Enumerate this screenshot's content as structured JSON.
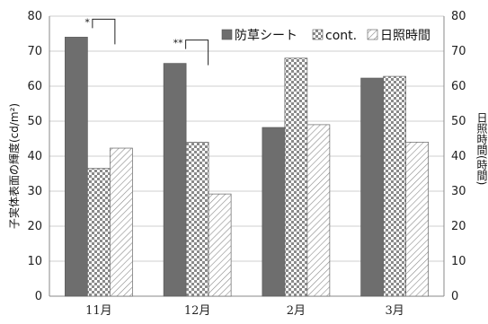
{
  "chart_data": {
    "type": "bar",
    "categories": [
      "11月",
      "12月",
      "2月",
      "3月"
    ],
    "series": [
      {
        "name": "防草シート",
        "values": [
          74,
          66.5,
          48.2,
          62.3
        ],
        "axis": "left",
        "pattern": "solid-dark"
      },
      {
        "name": "cont.",
        "values": [
          36.5,
          44,
          68,
          62.8
        ],
        "axis": "left",
        "pattern": "checker"
      },
      {
        "name": "日照時間",
        "values": [
          42.3,
          29.2,
          49,
          44
        ],
        "axis": "right",
        "pattern": "diagonal-hatch"
      }
    ],
    "ylabel": "子実体表面の輝度(cd/m²)",
    "y2label": "日照時間(時間)",
    "ylim": [
      0,
      80
    ],
    "y2lim": [
      0,
      80
    ],
    "yticks": [
      0,
      10,
      20,
      30,
      40,
      50,
      60,
      70,
      80
    ],
    "grid": true,
    "legend": "top-right",
    "significance": [
      {
        "category": "11月",
        "label": "*"
      },
      {
        "category": "12月",
        "label": "**"
      }
    ]
  },
  "colors": {
    "solid": "#6e6e6e",
    "grid": "#cfcfcf",
    "axis": "#888888"
  }
}
